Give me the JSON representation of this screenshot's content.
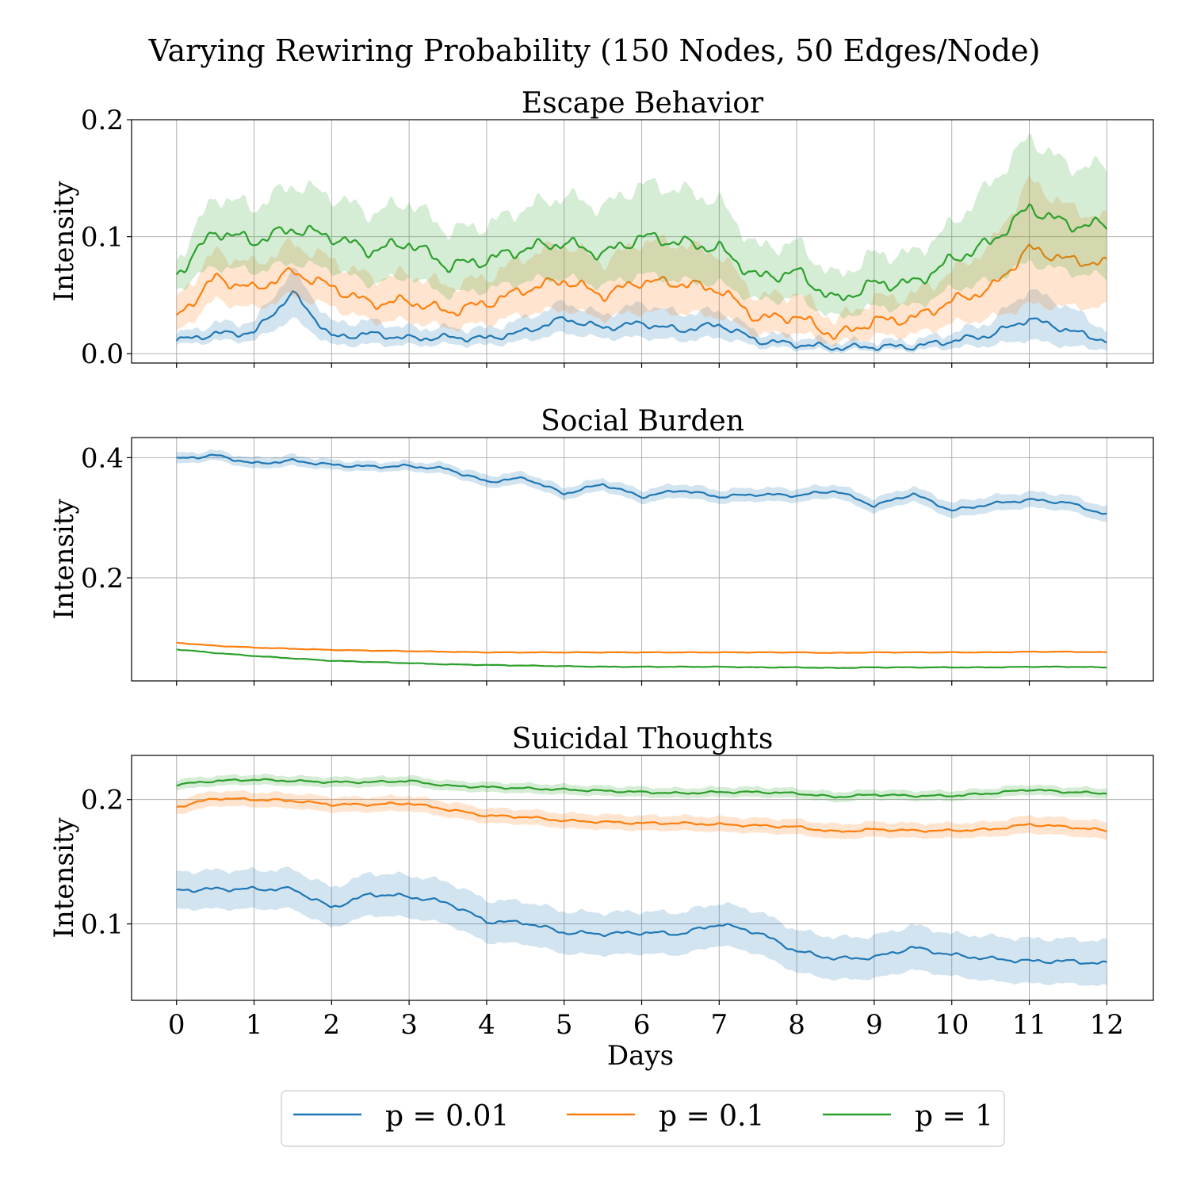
{
  "chart_data": {
    "type": "line",
    "suptitle": "Varying Rewiring Probability (150 Nodes, 50 Edges/Node)",
    "xlabel": "Days",
    "xlim": [
      -0.58,
      12.6
    ],
    "xticks": [
      0,
      1,
      2,
      3,
      4,
      5,
      6,
      7,
      8,
      9,
      10,
      11,
      12
    ],
    "grid": true,
    "legend": {
      "placement": "bottom-center",
      "entries": [
        "p = 0.01",
        "p = 0.1",
        "p = 1"
      ]
    },
    "colors": {
      "p = 0.01": "#1f77b4",
      "p = 0.1": "#ff7f0e",
      "p = 1": "#2ca02c"
    },
    "panels": [
      {
        "title": "Escape Behavior",
        "ylabel": "Intensity",
        "ylim": [
          -0.008,
          0.2
        ],
        "yticks": [
          0.0,
          0.1,
          0.2
        ],
        "ytick_labels": [
          "0.0",
          "0.1",
          "0.2"
        ],
        "x": [
          0,
          0.5,
          1,
          1.5,
          2,
          2.5,
          3,
          3.5,
          4,
          4.5,
          5,
          5.5,
          6,
          6.5,
          7,
          7.5,
          8,
          8.5,
          9,
          9.5,
          10,
          10.5,
          11,
          11.5,
          12
        ],
        "series": [
          {
            "name": "p = 0.01",
            "values": [
              0.011,
              0.017,
              0.018,
              0.052,
              0.014,
              0.017,
              0.013,
              0.014,
              0.013,
              0.019,
              0.03,
              0.022,
              0.026,
              0.02,
              0.025,
              0.011,
              0.008,
              0.005,
              0.006,
              0.006,
              0.011,
              0.016,
              0.03,
              0.02,
              0.011
            ],
            "lower": [
              0.007,
              0.011,
              0.011,
              0.03,
              0.007,
              0.008,
              0.007,
              0.008,
              0.007,
              0.011,
              0.018,
              0.013,
              0.014,
              0.011,
              0.014,
              0.006,
              0.004,
              0.002,
              0.003,
              0.003,
              0.005,
              0.007,
              0.012,
              0.006,
              0.004
            ],
            "upper": [
              0.016,
              0.026,
              0.027,
              0.072,
              0.026,
              0.028,
              0.022,
              0.022,
              0.021,
              0.03,
              0.044,
              0.033,
              0.043,
              0.034,
              0.037,
              0.018,
              0.014,
              0.01,
              0.011,
              0.011,
              0.018,
              0.027,
              0.055,
              0.04,
              0.02
            ]
          },
          {
            "name": "p = 0.1",
            "values": [
              0.031,
              0.065,
              0.055,
              0.07,
              0.057,
              0.043,
              0.045,
              0.036,
              0.043,
              0.055,
              0.063,
              0.05,
              0.062,
              0.06,
              0.055,
              0.03,
              0.032,
              0.015,
              0.028,
              0.03,
              0.045,
              0.055,
              0.09,
              0.08,
              0.077
            ],
            "lower": [
              0.018,
              0.046,
              0.038,
              0.05,
              0.04,
              0.028,
              0.028,
              0.022,
              0.026,
              0.034,
              0.038,
              0.03,
              0.036,
              0.035,
              0.032,
              0.016,
              0.018,
              0.008,
              0.015,
              0.016,
              0.026,
              0.03,
              0.042,
              0.04,
              0.04
            ],
            "upper": [
              0.047,
              0.087,
              0.076,
              0.094,
              0.08,
              0.065,
              0.068,
              0.058,
              0.065,
              0.083,
              0.094,
              0.078,
              0.096,
              0.094,
              0.085,
              0.048,
              0.052,
              0.028,
              0.047,
              0.05,
              0.07,
              0.092,
              0.148,
              0.125,
              0.115
            ]
          },
          {
            "name": "p = 1",
            "values": [
              0.068,
              0.105,
              0.096,
              0.107,
              0.1,
              0.088,
              0.095,
              0.075,
              0.08,
              0.09,
              0.095,
              0.085,
              0.1,
              0.095,
              0.09,
              0.065,
              0.07,
              0.045,
              0.06,
              0.06,
              0.08,
              0.095,
              0.125,
              0.11,
              0.11
            ],
            "lower": [
              0.055,
              0.075,
              0.07,
              0.078,
              0.072,
              0.06,
              0.066,
              0.05,
              0.055,
              0.062,
              0.065,
              0.058,
              0.068,
              0.062,
              0.06,
              0.045,
              0.048,
              0.03,
              0.04,
              0.04,
              0.055,
              0.062,
              0.078,
              0.07,
              0.065
            ],
            "upper": [
              0.08,
              0.135,
              0.125,
              0.145,
              0.135,
              0.12,
              0.13,
              0.105,
              0.11,
              0.125,
              0.135,
              0.125,
              0.145,
              0.14,
              0.13,
              0.09,
              0.095,
              0.065,
              0.085,
              0.085,
              0.11,
              0.145,
              0.185,
              0.16,
              0.16
            ]
          }
        ]
      },
      {
        "title": "Social Burden",
        "ylabel": "Intensity",
        "ylim": [
          0.0285,
          0.4335
        ],
        "yticks": [
          0.2,
          0.4
        ],
        "ytick_labels": [
          "0.2",
          "0.4"
        ],
        "x": [
          0,
          0.5,
          1,
          1.5,
          2,
          2.5,
          3,
          3.5,
          4,
          4.5,
          5,
          5.5,
          6,
          6.5,
          7,
          7.5,
          8,
          8.5,
          9,
          9.5,
          10,
          10.5,
          11,
          11.5,
          12
        ],
        "series": [
          {
            "name": "p = 0.01",
            "values": [
              0.398,
              0.404,
              0.39,
              0.395,
              0.388,
              0.385,
              0.386,
              0.381,
              0.36,
              0.366,
              0.34,
              0.356,
              0.335,
              0.346,
              0.335,
              0.339,
              0.337,
              0.345,
              0.32,
              0.34,
              0.312,
              0.323,
              0.33,
              0.325,
              0.305
            ],
            "lower": [
              0.389,
              0.396,
              0.381,
              0.386,
              0.38,
              0.377,
              0.378,
              0.372,
              0.35,
              0.356,
              0.33,
              0.346,
              0.324,
              0.335,
              0.324,
              0.328,
              0.326,
              0.334,
              0.308,
              0.328,
              0.299,
              0.31,
              0.317,
              0.312,
              0.292
            ],
            "upper": [
              0.407,
              0.412,
              0.399,
              0.404,
              0.396,
              0.393,
              0.394,
              0.39,
              0.37,
              0.376,
              0.35,
              0.366,
              0.346,
              0.357,
              0.346,
              0.35,
              0.348,
              0.356,
              0.332,
              0.352,
              0.325,
              0.336,
              0.343,
              0.338,
              0.318
            ]
          },
          {
            "name": "p = 0.1",
            "values": [
              0.092,
              0.087,
              0.084,
              0.082,
              0.08,
              0.079,
              0.078,
              0.077,
              0.076,
              0.076,
              0.076,
              0.076,
              0.076,
              0.076,
              0.076,
              0.076,
              0.076,
              0.075,
              0.076,
              0.076,
              0.076,
              0.076,
              0.077,
              0.077,
              0.076
            ]
          },
          {
            "name": "p = 1",
            "values": [
              0.081,
              0.075,
              0.07,
              0.066,
              0.062,
              0.06,
              0.058,
              0.056,
              0.055,
              0.054,
              0.053,
              0.052,
              0.052,
              0.052,
              0.052,
              0.051,
              0.051,
              0.05,
              0.051,
              0.051,
              0.051,
              0.051,
              0.052,
              0.052,
              0.051
            ]
          }
        ]
      },
      {
        "title": "Suicidal Thoughts",
        "ylabel": "Intensity",
        "ylim": [
          0.0385,
          0.2355
        ],
        "yticks": [
          0.1,
          0.2
        ],
        "ytick_labels": [
          "0.1",
          "0.2"
        ],
        "x": [
          0,
          0.5,
          1,
          1.5,
          2,
          2.5,
          3,
          3.5,
          4,
          4.5,
          5,
          5.5,
          6,
          6.5,
          7,
          7.5,
          8,
          8.5,
          9,
          9.5,
          10,
          10.5,
          11,
          11.5,
          12
        ],
        "series": [
          {
            "name": "p = 0.01",
            "values": [
              0.127,
              0.128,
              0.128,
              0.128,
              0.113,
              0.124,
              0.122,
              0.117,
              0.102,
              0.101,
              0.093,
              0.092,
              0.093,
              0.092,
              0.1,
              0.093,
              0.078,
              0.072,
              0.073,
              0.081,
              0.075,
              0.072,
              0.07,
              0.07,
              0.068
            ],
            "lower": [
              0.112,
              0.112,
              0.112,
              0.112,
              0.097,
              0.107,
              0.105,
              0.1,
              0.085,
              0.084,
              0.076,
              0.075,
              0.076,
              0.075,
              0.083,
              0.076,
              0.061,
              0.055,
              0.056,
              0.063,
              0.058,
              0.054,
              0.052,
              0.052,
              0.05
            ],
            "upper": [
              0.142,
              0.143,
              0.143,
              0.144,
              0.129,
              0.141,
              0.139,
              0.134,
              0.119,
              0.118,
              0.11,
              0.109,
              0.11,
              0.109,
              0.117,
              0.11,
              0.095,
              0.089,
              0.09,
              0.099,
              0.092,
              0.09,
              0.088,
              0.088,
              0.086
            ]
          },
          {
            "name": "p = 0.1",
            "values": [
              0.194,
              0.201,
              0.2,
              0.199,
              0.196,
              0.196,
              0.197,
              0.192,
              0.187,
              0.186,
              0.183,
              0.182,
              0.181,
              0.181,
              0.18,
              0.179,
              0.178,
              0.174,
              0.176,
              0.175,
              0.175,
              0.176,
              0.18,
              0.178,
              0.175
            ],
            "lower": [
              0.188,
              0.195,
              0.194,
              0.193,
              0.19,
              0.19,
              0.191,
              0.186,
              0.181,
              0.18,
              0.177,
              0.176,
              0.175,
              0.175,
              0.174,
              0.173,
              0.172,
              0.168,
              0.17,
              0.169,
              0.169,
              0.17,
              0.173,
              0.171,
              0.168
            ],
            "upper": [
              0.2,
              0.207,
              0.206,
              0.205,
              0.202,
              0.202,
              0.203,
              0.198,
              0.193,
              0.192,
              0.189,
              0.188,
              0.187,
              0.187,
              0.186,
              0.185,
              0.184,
              0.18,
              0.182,
              0.181,
              0.181,
              0.182,
              0.187,
              0.185,
              0.182
            ]
          },
          {
            "name": "p = 1",
            "values": [
              0.212,
              0.215,
              0.216,
              0.215,
              0.214,
              0.214,
              0.215,
              0.211,
              0.21,
              0.209,
              0.208,
              0.207,
              0.206,
              0.205,
              0.206,
              0.206,
              0.205,
              0.202,
              0.204,
              0.203,
              0.203,
              0.205,
              0.208,
              0.206,
              0.205
            ],
            "lower": [
              0.208,
              0.211,
              0.212,
              0.211,
              0.21,
              0.21,
              0.211,
              0.207,
              0.206,
              0.205,
              0.204,
              0.203,
              0.202,
              0.201,
              0.202,
              0.202,
              0.201,
              0.198,
              0.2,
              0.199,
              0.199,
              0.201,
              0.204,
              0.202,
              0.201
            ],
            "upper": [
              0.216,
              0.219,
              0.22,
              0.219,
              0.218,
              0.218,
              0.219,
              0.215,
              0.214,
              0.213,
              0.212,
              0.211,
              0.21,
              0.209,
              0.21,
              0.21,
              0.209,
              0.206,
              0.208,
              0.207,
              0.207,
              0.209,
              0.212,
              0.21,
              0.209
            ]
          }
        ]
      }
    ]
  }
}
